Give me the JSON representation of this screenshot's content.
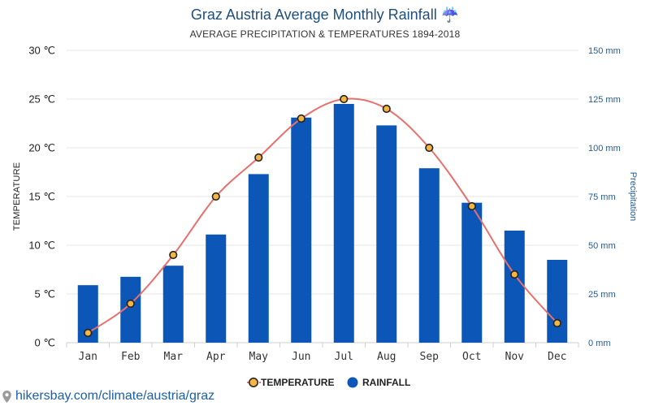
{
  "footer": {
    "url_text": "hikersbay.com/climate/austria/graz"
  },
  "chart_data": {
    "type": "bar",
    "title": "Graz Austria Average Monthly Rainfall ☔",
    "subtitle": "AVERAGE PRECIPITATION & TEMPERATURES 1894-2018",
    "categories": [
      "Jan",
      "Feb",
      "Mar",
      "Apr",
      "May",
      "Jun",
      "Jul",
      "Aug",
      "Sep",
      "Oct",
      "Nov",
      "Dec"
    ],
    "left_axis": {
      "label": "TEMPERATURE",
      "unit_suffix": " ℃",
      "ylim": [
        0,
        30
      ],
      "ticks": [
        0,
        5,
        10,
        15,
        20,
        25,
        30
      ],
      "tick_labels": [
        "0 ℃",
        "5 ℃",
        "10 ℃",
        "15 ℃",
        "20 ℃",
        "25 ℃",
        "30 ℃"
      ]
    },
    "right_axis": {
      "label": "Precipitation",
      "unit_suffix": " mm",
      "ylim": [
        0,
        150
      ],
      "ticks": [
        0,
        25,
        50,
        75,
        100,
        125,
        150
      ],
      "tick_labels": [
        "0 mm",
        "25 mm",
        "50 mm",
        "75 mm",
        "100 mm",
        "125 mm",
        "150 mm"
      ]
    },
    "series": [
      {
        "name": "RAINFALL",
        "type": "bar",
        "axis": "right",
        "values": [
          29.5,
          33.8,
          39.5,
          55.5,
          86.5,
          115.5,
          122.5,
          111.5,
          89.5,
          71.8,
          57.5,
          42.5
        ],
        "color": "#0b56b6"
      },
      {
        "name": "TEMPERATURE",
        "type": "line",
        "axis": "left",
        "values": [
          1,
          4,
          9,
          15,
          19,
          23,
          25,
          24,
          20,
          14,
          7,
          2
        ],
        "line_color": "#e8706c",
        "marker_fill": "#f4b542",
        "marker_stroke": "#222222"
      }
    ],
    "legend": {
      "placement": "bottom-center",
      "entries": [
        "TEMPERATURE",
        "RAINFALL"
      ]
    },
    "grid": true
  }
}
